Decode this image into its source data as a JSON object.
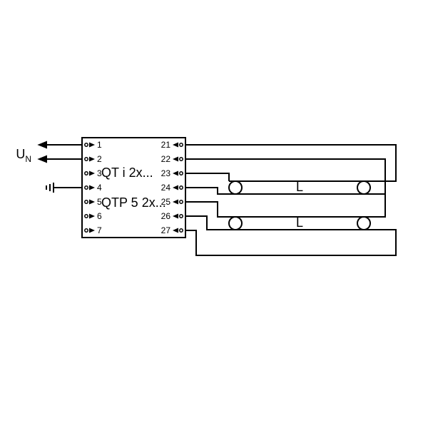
{
  "diagram": {
    "type": "wiring-schematic",
    "background_color": "#ffffff",
    "stroke_color": "#000000",
    "stroke_width": 2,
    "input_symbol": {
      "letter": "U",
      "subscript": "N"
    },
    "ground_icon": "ground",
    "ballast_box": {
      "lines": [
        "QT i 2x...",
        "QTP 5 2x..."
      ],
      "label_fontsize": 18,
      "left_terminals": [
        "1",
        "2",
        "3",
        "4",
        "5",
        "6",
        "7"
      ],
      "right_terminals": [
        "21",
        "22",
        "23",
        "24",
        "25",
        "26",
        "27"
      ],
      "terminal_fontsize": 12
    },
    "lamps": [
      {
        "label": "L"
      },
      {
        "label": "L"
      }
    ]
  }
}
